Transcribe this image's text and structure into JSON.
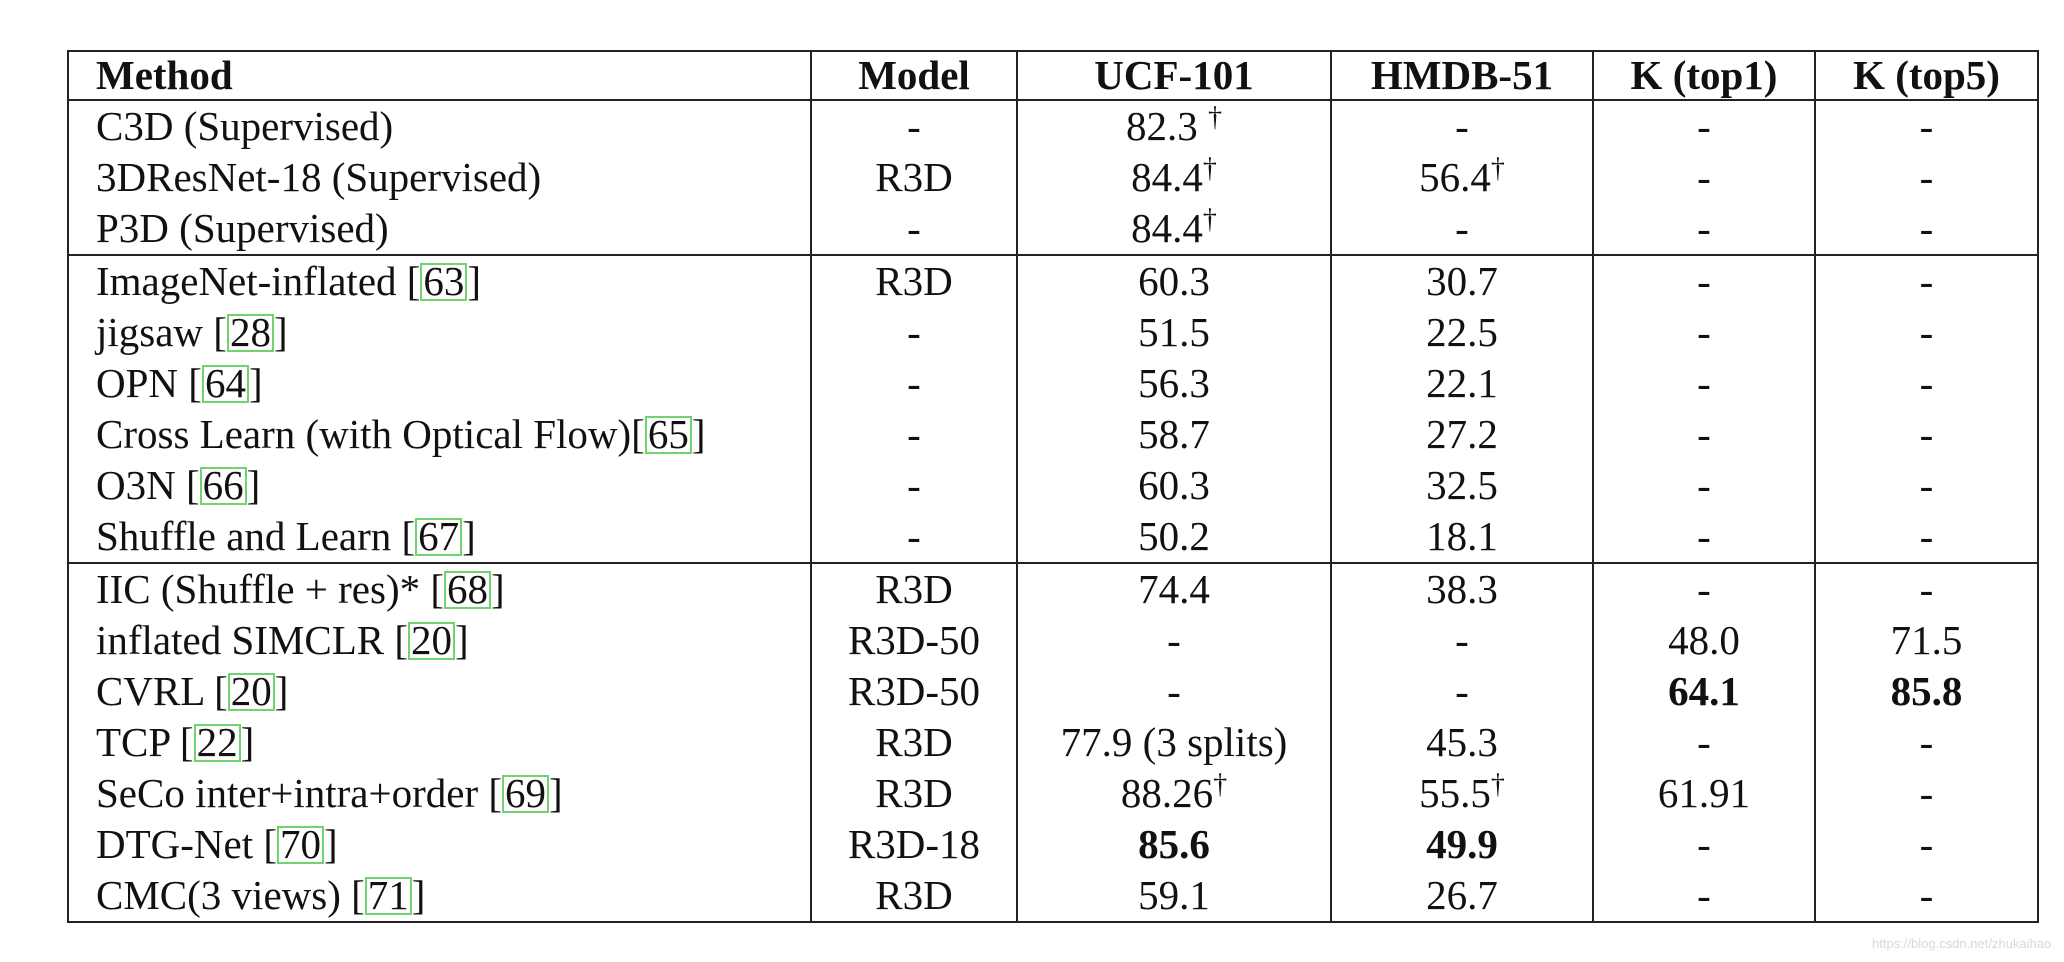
{
  "table": {
    "headers": [
      "Method",
      "Model",
      "UCF-101",
      "HMDB-51",
      "K (top1)",
      "K (top5)"
    ],
    "rows": [
      {
        "method": "C3D (Supervised)",
        "ref": "",
        "ref_gap": "",
        "ref_suffix": "",
        "model": "-",
        "ucf": "82.3 ",
        "ucf_mark": "†",
        "ucf_bold": false,
        "hmdb": "-",
        "hmdb_mark": "",
        "hmdb_bold": false,
        "k1": "-",
        "k1_bold": false,
        "k5": "-",
        "k5_bold": false,
        "group_start": true
      },
      {
        "method": "3DResNet-18 (Supervised)",
        "ref": "",
        "ref_gap": "",
        "ref_suffix": "",
        "model": "R3D",
        "ucf": "84.4",
        "ucf_mark": "†",
        "ucf_bold": false,
        "hmdb": "56.4",
        "hmdb_mark": "†",
        "hmdb_bold": false,
        "k1": "-",
        "k1_bold": false,
        "k5": "-",
        "k5_bold": false,
        "group_start": false
      },
      {
        "method": "P3D (Supervised)",
        "ref": "",
        "ref_gap": "",
        "ref_suffix": "",
        "model": "-",
        "ucf": "84.4",
        "ucf_mark": "†",
        "ucf_bold": false,
        "hmdb": "-",
        "hmdb_mark": "",
        "hmdb_bold": false,
        "k1": "-",
        "k1_bold": false,
        "k5": "-",
        "k5_bold": false,
        "group_start": false
      },
      {
        "method": "ImageNet-inflated [",
        "ref": "63",
        "ref_gap": "",
        "ref_suffix": "]",
        "model": "R3D",
        "ucf": "60.3",
        "ucf_mark": "",
        "ucf_bold": false,
        "hmdb": "30.7",
        "hmdb_mark": "",
        "hmdb_bold": false,
        "k1": "-",
        "k1_bold": false,
        "k5": "-",
        "k5_bold": false,
        "group_start": true
      },
      {
        "method": "jigsaw [",
        "ref": "28",
        "ref_gap": "",
        "ref_suffix": "]",
        "model": "-",
        "ucf": "51.5",
        "ucf_mark": "",
        "ucf_bold": false,
        "hmdb": "22.5",
        "hmdb_mark": "",
        "hmdb_bold": false,
        "k1": "-",
        "k1_bold": false,
        "k5": "-",
        "k5_bold": false,
        "group_start": false
      },
      {
        "method": "OPN [",
        "ref": "64",
        "ref_gap": "",
        "ref_suffix": "]",
        "model": "-",
        "ucf": "56.3",
        "ucf_mark": "",
        "ucf_bold": false,
        "hmdb": "22.1",
        "hmdb_mark": "",
        "hmdb_bold": false,
        "k1": "-",
        "k1_bold": false,
        "k5": "-",
        "k5_bold": false,
        "group_start": false
      },
      {
        "method": "Cross Learn (with Optical Flow)[",
        "ref": "65",
        "ref_gap": "",
        "ref_suffix": "]",
        "model": "-",
        "ucf": "58.7",
        "ucf_mark": "",
        "ucf_bold": false,
        "hmdb": "27.2",
        "hmdb_mark": "",
        "hmdb_bold": false,
        "k1": "-",
        "k1_bold": false,
        "k5": "-",
        "k5_bold": false,
        "group_start": false
      },
      {
        "method": "O3N [",
        "ref": "66",
        "ref_gap": "",
        "ref_suffix": "]",
        "model": "-",
        "ucf": "60.3",
        "ucf_mark": "",
        "ucf_bold": false,
        "hmdb": "32.5",
        "hmdb_mark": "",
        "hmdb_bold": false,
        "k1": "-",
        "k1_bold": false,
        "k5": "-",
        "k5_bold": false,
        "group_start": false
      },
      {
        "method": "Shuffle and Learn [",
        "ref": "67",
        "ref_gap": "",
        "ref_suffix": "]",
        "model": "-",
        "ucf": "50.2",
        "ucf_mark": "",
        "ucf_bold": false,
        "hmdb": "18.1",
        "hmdb_mark": "",
        "hmdb_bold": false,
        "k1": "-",
        "k1_bold": false,
        "k5": "-",
        "k5_bold": false,
        "group_start": false
      },
      {
        "method": "IIC (Shuffle + res)* [",
        "ref": "68",
        "ref_gap": "",
        "ref_suffix": "]",
        "model": "R3D",
        "ucf": "74.4",
        "ucf_mark": "",
        "ucf_bold": false,
        "hmdb": "38.3",
        "hmdb_mark": "",
        "hmdb_bold": false,
        "k1": "-",
        "k1_bold": false,
        "k5": "-",
        "k5_bold": false,
        "group_start": true
      },
      {
        "method": "inflated SIMCLR [",
        "ref": "20",
        "ref_gap": "",
        "ref_suffix": "]",
        "model": "R3D-50",
        "ucf": "-",
        "ucf_mark": "",
        "ucf_bold": false,
        "hmdb": "-",
        "hmdb_mark": "",
        "hmdb_bold": false,
        "k1": "48.0",
        "k1_bold": false,
        "k5": "71.5",
        "k5_bold": false,
        "group_start": false
      },
      {
        "method": "CVRL [",
        "ref": "20",
        "ref_gap": "",
        "ref_suffix": "]",
        "model": "R3D-50",
        "ucf": "-",
        "ucf_mark": "",
        "ucf_bold": false,
        "hmdb": "-",
        "hmdb_mark": "",
        "hmdb_bold": false,
        "k1": "64.1",
        "k1_bold": true,
        "k5": "85.8",
        "k5_bold": true,
        "group_start": false
      },
      {
        "method": "TCP [",
        "ref": "22",
        "ref_gap": "",
        "ref_suffix": "]",
        "model": "R3D",
        "ucf": "77.9 (3 splits)",
        "ucf_mark": "",
        "ucf_bold": false,
        "hmdb": "45.3",
        "hmdb_mark": "",
        "hmdb_bold": false,
        "k1": "-",
        "k1_bold": false,
        "k5": "-",
        "k5_bold": false,
        "group_start": false
      },
      {
        "method": "SeCo inter+intra+order [",
        "ref": "69",
        "ref_gap": "",
        "ref_suffix": "]",
        "model": "R3D",
        "ucf": "88.26",
        "ucf_mark": "†",
        "ucf_bold": false,
        "hmdb": "55.5",
        "hmdb_mark": "†",
        "hmdb_bold": false,
        "k1": "61.91",
        "k1_bold": false,
        "k5": "-",
        "k5_bold": false,
        "group_start": false
      },
      {
        "method": "DTG-Net [",
        "ref": "70",
        "ref_gap": "",
        "ref_suffix": "]",
        "model": "R3D-18",
        "ucf": "85.6",
        "ucf_mark": "",
        "ucf_bold": true,
        "hmdb": "49.9",
        "hmdb_mark": "",
        "hmdb_bold": true,
        "k1": "-",
        "k1_bold": false,
        "k5": "-",
        "k5_bold": false,
        "group_start": false
      },
      {
        "method": "CMC(3 views) [",
        "ref": "71",
        "ref_gap": "",
        "ref_suffix": "]",
        "model": "R3D",
        "ucf": "59.1",
        "ucf_mark": "",
        "ucf_bold": false,
        "hmdb": "26.7",
        "hmdb_mark": "",
        "hmdb_bold": false,
        "k1": "-",
        "k1_bold": false,
        "k5": "-",
        "k5_bold": false,
        "group_start": false
      }
    ]
  },
  "watermark": "https://blog.csdn.net/zhukaihao"
}
